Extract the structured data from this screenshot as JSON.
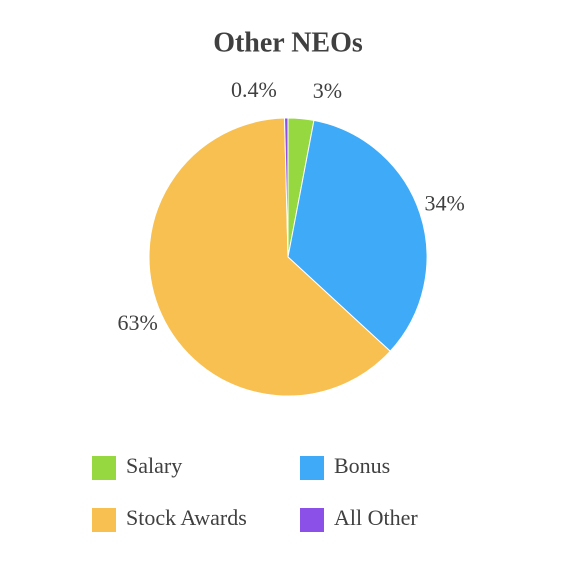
{
  "chart_data": {
    "type": "pie",
    "title": "Other NEOs",
    "categories": [
      "Salary",
      "Bonus",
      "Stock Awards",
      "All Other"
    ],
    "values": [
      3,
      34,
      63,
      0.4
    ],
    "value_labels": [
      "3%",
      "34%",
      "63%",
      "0.4%"
    ],
    "colors": [
      "#95d840",
      "#3eaaf8",
      "#f8c050",
      "#8a50e8"
    ]
  }
}
